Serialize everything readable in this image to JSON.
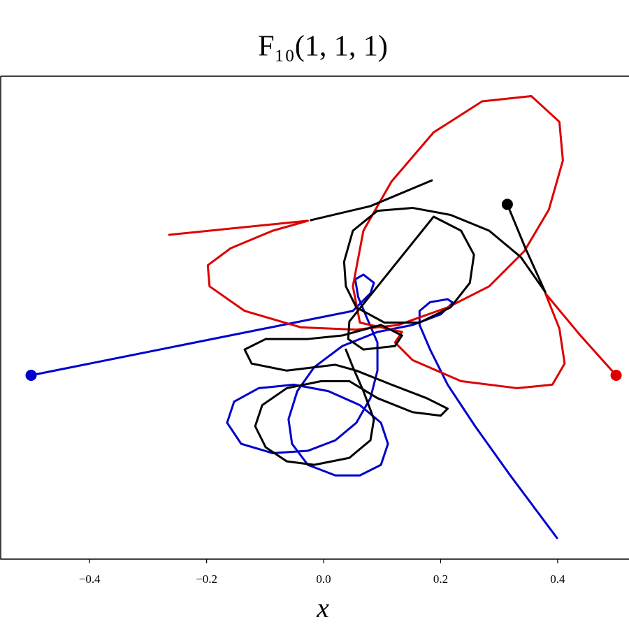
{
  "chart_data": {
    "type": "line",
    "title": "F₁₀(1, 1, 1)",
    "x_label": "x",
    "xlim": [
      -0.552,
      0.522
    ],
    "ylim": [
      -0.314,
      0.511
    ],
    "xticks": [
      {
        "value": -0.4,
        "label": "−0.4"
      },
      {
        "value": -0.2,
        "label": "−0.2"
      },
      {
        "value": 0,
        "label": "0.0"
      },
      {
        "value": 0.2,
        "label": "0.2"
      },
      {
        "value": 0.4,
        "label": "0.4"
      }
    ],
    "grid": false,
    "series": [
      {
        "color": "#0000cc",
        "x": [
          -0.5,
          0.05,
          0.08,
          0.086,
          0.068,
          0.054,
          0.059,
          0.074,
          0.092,
          0.092,
          0.08,
          0.056,
          0.02,
          -0.027,
          -0.087,
          -0.141,
          -0.165,
          -0.153,
          -0.111,
          -0.051,
          0.008,
          0.062,
          0.098,
          0.11,
          0.098,
          0.062,
          0.02,
          -0.027,
          -0.054,
          -0.06,
          -0.045,
          -0.016,
          0.032,
          0.092,
          0.152,
          0.2,
          0.221,
          0.212,
          0.182,
          0.164,
          0.164,
          0.182,
          0.212,
          0.259,
          0.319,
          0.399
        ],
        "y": [
          0,
          0.11,
          0.14,
          0.158,
          0.172,
          0.164,
          0.134,
          0.098,
          0.056,
          0.008,
          -0.039,
          -0.081,
          -0.111,
          -0.129,
          -0.133,
          -0.117,
          -0.081,
          -0.045,
          -0.022,
          -0.016,
          -0.027,
          -0.051,
          -0.081,
          -0.117,
          -0.153,
          -0.171,
          -0.171,
          -0.153,
          -0.117,
          -0.075,
          -0.027,
          0.014,
          0.05,
          0.074,
          0.086,
          0.104,
          0.124,
          0.13,
          0.125,
          0.11,
          0.086,
          0.044,
          -0.016,
          -0.087,
          -0.171,
          -0.278
        ]
      },
      {
        "color": "#dd0000",
        "x": [
          0.5,
          0.439,
          0.379,
          0.403,
          0.412,
          0.391,
          0.331,
          0.235,
          0.152,
          0.122,
          0.134,
          0.098,
          0.062,
          0.05,
          0.068,
          0.116,
          0.188,
          0.271,
          0.355,
          0.403,
          0.409,
          0.385,
          0.343,
          0.283,
          0.212,
          0.128,
          0.056,
          -0.039,
          -0.135,
          -0.195,
          -0.198,
          -0.159,
          -0.087,
          -0.027,
          -0.264
        ],
        "y": [
          0,
          0.068,
          0.14,
          0.08,
          0.02,
          -0.016,
          -0.022,
          -0.01,
          0.026,
          0.056,
          0.074,
          0.082,
          0.09,
          0.152,
          0.247,
          0.331,
          0.415,
          0.468,
          0.477,
          0.433,
          0.367,
          0.283,
          0.212,
          0.152,
          0.116,
          0.086,
          0.078,
          0.082,
          0.11,
          0.152,
          0.188,
          0.217,
          0.247,
          0.264,
          0.24
        ]
      },
      {
        "color": "#000000",
        "x": [
          0.314,
          0.345,
          0.379,
          0.337,
          0.283,
          0.217,
          0.152,
          0.092,
          0.05,
          0.035,
          0.038,
          0.056,
          0.104,
          0.164,
          0.217,
          0.25,
          0.257,
          0.235,
          0.188,
          0.044,
          0.042,
          0.068,
          0.122,
          0.134,
          0.098,
          0.032,
          -0.027,
          -0.099,
          -0.135,
          -0.123,
          -0.063,
          0.02,
          0.056,
          0.116,
          0.176,
          0.212,
          0.2,
          0.152,
          0.092,
          0.044,
          -0.004,
          -0.063,
          -0.105,
          -0.117,
          -0.099,
          -0.063,
          -0.016,
          0.044,
          0.08,
          0.086,
          0.068,
          0.05,
          0.038,
          null,
          -0.022,
          0.08,
          0.185
        ],
        "y": [
          0.292,
          0.217,
          0.142,
          0.202,
          0.247,
          0.274,
          0.286,
          0.281,
          0.247,
          0.194,
          0.152,
          0.116,
          0.09,
          0.09,
          0.116,
          0.158,
          0.206,
          0.247,
          0.271,
          0.092,
          0.062,
          0.044,
          0.05,
          0.068,
          0.086,
          0.068,
          0.062,
          0.062,
          0.044,
          0.02,
          0.008,
          0.018,
          0.008,
          -0.016,
          -0.039,
          -0.057,
          -0.069,
          -0.063,
          -0.039,
          -0.01,
          -0.01,
          -0.022,
          -0.051,
          -0.087,
          -0.123,
          -0.147,
          -0.153,
          -0.141,
          -0.111,
          -0.075,
          -0.027,
          0.014,
          0.044,
          null,
          0.265,
          0.289,
          0.333
        ]
      }
    ]
  }
}
